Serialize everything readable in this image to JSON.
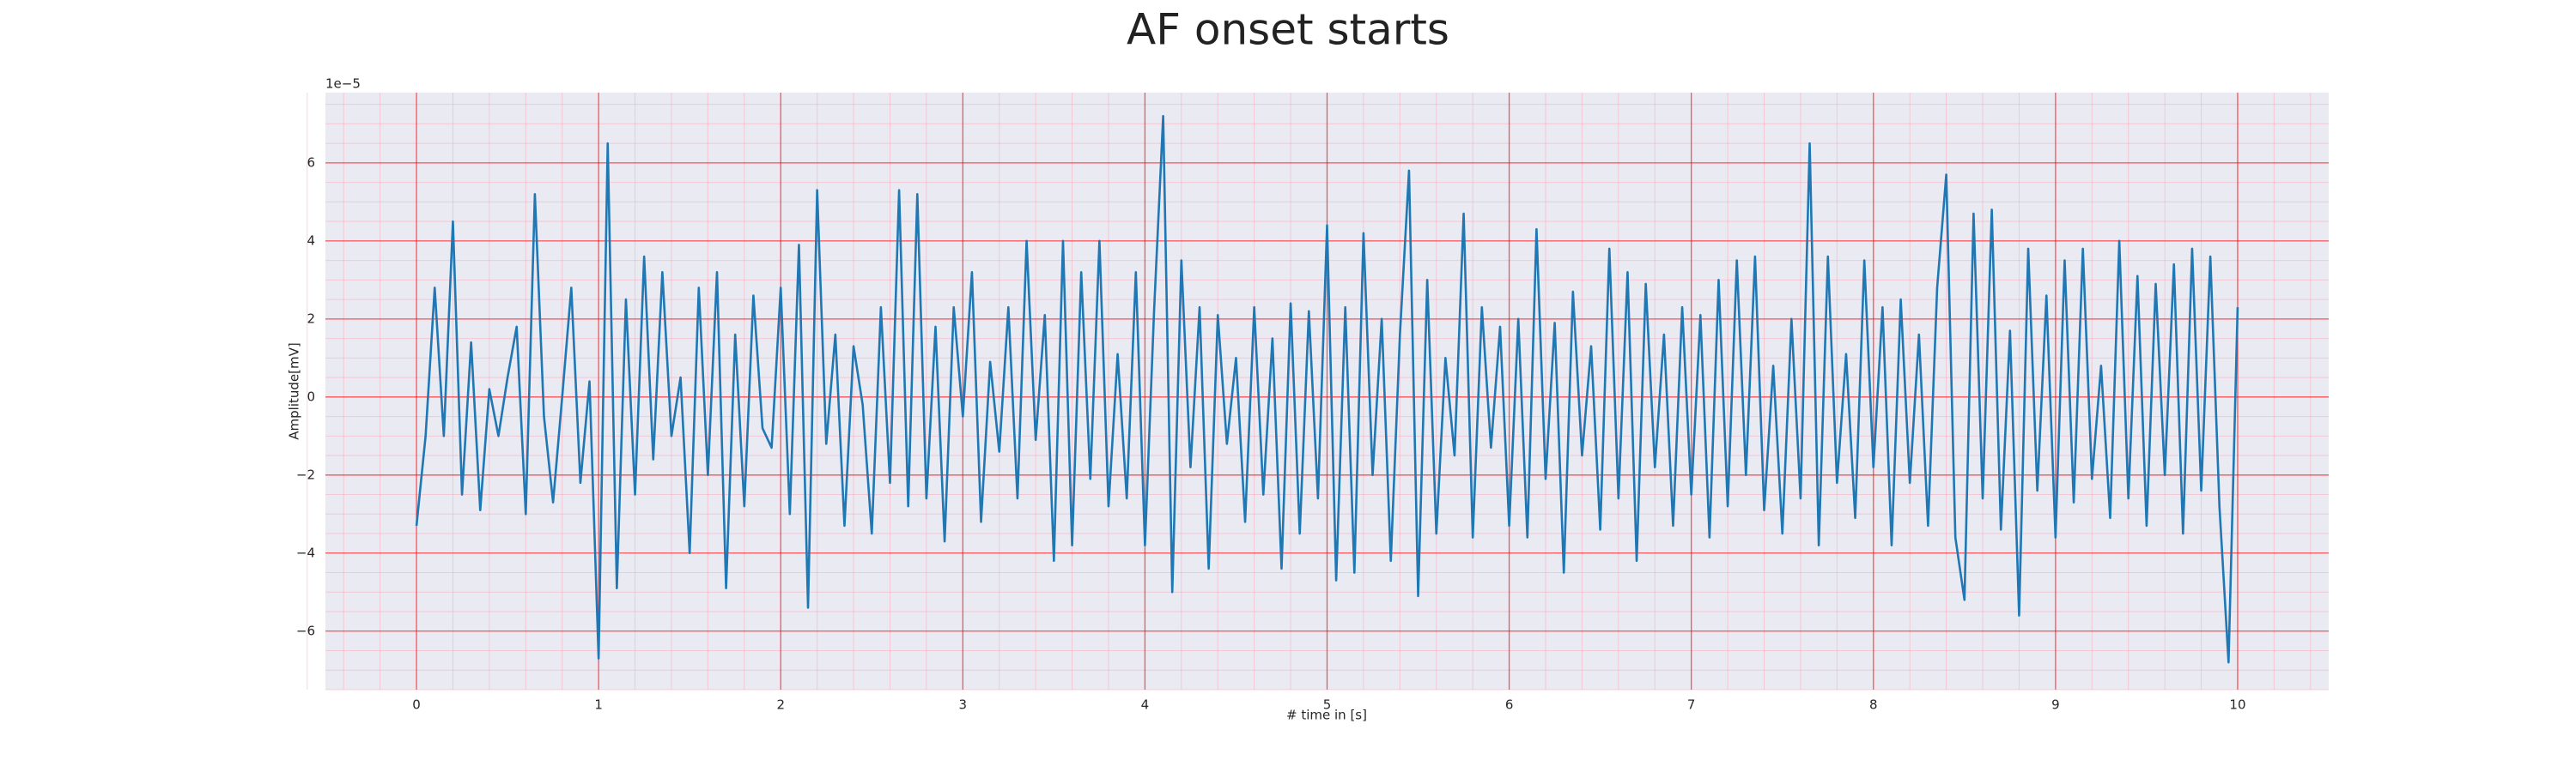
{
  "chart_data": {
    "type": "line",
    "title": "AF onset starts",
    "xlabel": "# time in [s]",
    "ylabel": "Amplitude[mV]",
    "y_offset_label": "1e−5",
    "grid": true,
    "minor_grid": true,
    "background": "#eaeaf2",
    "xlim": [
      -0.5,
      10.5
    ],
    "ylim": [
      -7.5e-05,
      7.8e-05
    ],
    "xticks": [
      0,
      1,
      2,
      3,
      4,
      5,
      6,
      7,
      8,
      9,
      10
    ],
    "yticks": [
      {
        "value": -6e-05,
        "label": "−6"
      },
      {
        "value": -4e-05,
        "label": "−4"
      },
      {
        "value": -2e-05,
        "label": "−2"
      },
      {
        "value": 0,
        "label": "0"
      },
      {
        "value": 2e-05,
        "label": "2"
      },
      {
        "value": 4e-05,
        "label": "4"
      },
      {
        "value": 6e-05,
        "label": "6"
      }
    ],
    "series": [
      {
        "color": "#1f77b4",
        "x": [
          0,
          0.05,
          0.1,
          0.15,
          0.2,
          0.25,
          0.3,
          0.35,
          0.4,
          0.45,
          0.5,
          0.55,
          0.6,
          0.65,
          0.7,
          0.75,
          0.8,
          0.85,
          0.9,
          0.95,
          1,
          1.05,
          1.1,
          1.15,
          1.2,
          1.25,
          1.3,
          1.35,
          1.4,
          1.45,
          1.5,
          1.55,
          1.6,
          1.65,
          1.7,
          1.75,
          1.8,
          1.85,
          1.9,
          1.95,
          2,
          2.05,
          2.1,
          2.15,
          2.2,
          2.25,
          2.3,
          2.35,
          2.4,
          2.45,
          2.5,
          2.55,
          2.6,
          2.65,
          2.7,
          2.75,
          2.8,
          2.85,
          2.9,
          2.95,
          3,
          3.05,
          3.1,
          3.15,
          3.2,
          3.25,
          3.3,
          3.35,
          3.4,
          3.45,
          3.5,
          3.55,
          3.6,
          3.65,
          3.7,
          3.75,
          3.8,
          3.85,
          3.9,
          3.95,
          4,
          4.05,
          4.1,
          4.15,
          4.2,
          4.25,
          4.3,
          4.35,
          4.4,
          4.45,
          4.5,
          4.55,
          4.6,
          4.65,
          4.7,
          4.75,
          4.8,
          4.85,
          4.9,
          4.95,
          5,
          5.05,
          5.1,
          5.15,
          5.2,
          5.25,
          5.3,
          5.35,
          5.4,
          5.45,
          5.5,
          5.55,
          5.6,
          5.65,
          5.7,
          5.75,
          5.8,
          5.85,
          5.9,
          5.95,
          6,
          6.05,
          6.1,
          6.15,
          6.2,
          6.25,
          6.3,
          6.35,
          6.4,
          6.45,
          6.5,
          6.55,
          6.6,
          6.65,
          6.7,
          6.75,
          6.8,
          6.85,
          6.9,
          6.95,
          7,
          7.05,
          7.1,
          7.15,
          7.2,
          7.25,
          7.3,
          7.35,
          7.4,
          7.45,
          7.5,
          7.55,
          7.6,
          7.65,
          7.7,
          7.75,
          7.8,
          7.85,
          7.9,
          7.95,
          8,
          8.05,
          8.1,
          8.15,
          8.2,
          8.25,
          8.3,
          8.35,
          8.4,
          8.45,
          8.5,
          8.55,
          8.6,
          8.65,
          8.7,
          8.75,
          8.8,
          8.85,
          8.9,
          8.95,
          9,
          9.05,
          9.1,
          9.15,
          9.2,
          9.25,
          9.3,
          9.35,
          9.4,
          9.45,
          9.5,
          9.55,
          9.6,
          9.65,
          9.7,
          9.75,
          9.8,
          9.85,
          9.9,
          9.95,
          10
        ],
        "values": [
          -3.3e-05,
          -1e-05,
          2.8e-05,
          -1e-05,
          4.5e-05,
          -2.5e-05,
          1.4e-05,
          -2.9e-05,
          2e-06,
          -1e-05,
          5e-06,
          1.8e-05,
          -3e-05,
          5.2e-05,
          -5e-06,
          -2.7e-05,
          0,
          2.8e-05,
          -2.2e-05,
          4e-06,
          -6.7e-05,
          6.5e-05,
          -4.9e-05,
          2.5e-05,
          -2.5e-05,
          3.6e-05,
          -1.6e-05,
          3.2e-05,
          -1e-05,
          5e-06,
          -4e-05,
          2.8e-05,
          -2e-05,
          3.2e-05,
          -4.9e-05,
          1.6e-05,
          -2.8e-05,
          2.6e-05,
          -8e-06,
          -1.3e-05,
          2.8e-05,
          -3e-05,
          3.9e-05,
          -5.4e-05,
          5.3e-05,
          -1.2e-05,
          1.6e-05,
          -3.3e-05,
          1.3e-05,
          -2e-06,
          -3.5e-05,
          2.3e-05,
          -2.2e-05,
          5.3e-05,
          -2.8e-05,
          5.2e-05,
          -2.6e-05,
          1.8e-05,
          -3.7e-05,
          2.3e-05,
          -5e-06,
          3.2e-05,
          -3.2e-05,
          9e-06,
          -1.4e-05,
          2.3e-05,
          -2.6e-05,
          4e-05,
          -1.1e-05,
          2.1e-05,
          -4.2e-05,
          4e-05,
          -3.8e-05,
          3.2e-05,
          -2.1e-05,
          4e-05,
          -2.8e-05,
          1.1e-05,
          -2.6e-05,
          3.2e-05,
          -3.8e-05,
          2.2e-05,
          7.2e-05,
          -5e-05,
          3.5e-05,
          -1.8e-05,
          2.3e-05,
          -4.4e-05,
          2.1e-05,
          -1.2e-05,
          1e-05,
          -3.2e-05,
          2.3e-05,
          -2.5e-05,
          1.5e-05,
          -4.4e-05,
          2.4e-05,
          -3.5e-05,
          2.2e-05,
          -2.6e-05,
          4.4e-05,
          -4.7e-05,
          2.3e-05,
          -4.5e-05,
          4.2e-05,
          -2e-05,
          2e-05,
          -4.2e-05,
          1.6e-05,
          5.8e-05,
          -5.1e-05,
          3e-05,
          -3.5e-05,
          1e-05,
          -1.5e-05,
          4.7e-05,
          -3.6e-05,
          2.3e-05,
          -1.3e-05,
          1.8e-05,
          -3.3e-05,
          2e-05,
          -3.6e-05,
          4.3e-05,
          -2.1e-05,
          1.9e-05,
          -4.5e-05,
          2.7e-05,
          -1.5e-05,
          1.3e-05,
          -3.4e-05,
          3.8e-05,
          -2.6e-05,
          3.2e-05,
          -4.2e-05,
          2.9e-05,
          -1.8e-05,
          1.6e-05,
          -3.3e-05,
          2.3e-05,
          -2.5e-05,
          2.1e-05,
          -3.6e-05,
          3e-05,
          -2.8e-05,
          3.5e-05,
          -2e-05,
          3.6e-05,
          -2.9e-05,
          8e-06,
          -3.5e-05,
          2e-05,
          -2.6e-05,
          6.5e-05,
          -3.8e-05,
          3.6e-05,
          -2.2e-05,
          1.1e-05,
          -3.1e-05,
          3.5e-05,
          -1.8e-05,
          2.3e-05,
          -3.8e-05,
          2.5e-05,
          -2.2e-05,
          1.6e-05,
          -3.3e-05,
          2.8e-05,
          5.7e-05,
          -3.6e-05,
          -5.2e-05,
          4.7e-05,
          -2.6e-05,
          4.8e-05,
          -3.4e-05,
          1.7e-05,
          -5.6e-05,
          3.8e-05,
          -2.4e-05,
          2.6e-05,
          -3.6e-05,
          3.5e-05,
          -2.7e-05,
          3.8e-05,
          -2.1e-05,
          8e-06,
          -3.1e-05,
          4e-05,
          -2.6e-05,
          3.1e-05,
          -3.3e-05,
          2.9e-05,
          -2e-05,
          3.4e-05,
          -3.5e-05,
          3.8e-05,
          -2.4e-05,
          3.6e-05,
          -2.8e-05,
          -6.8e-05,
          2.3e-05
        ]
      }
    ]
  }
}
